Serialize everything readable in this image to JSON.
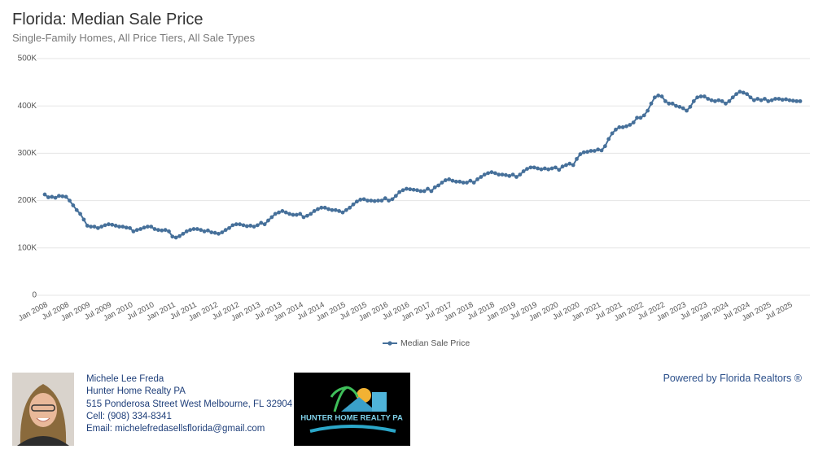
{
  "chart_data": {
    "type": "line",
    "title": "Florida: Median Sale Price",
    "subtitle": "Single-Family Homes, All Price Tiers, All Sale Types",
    "categories": [
      "Jan 2008",
      null,
      null,
      null,
      null,
      null,
      "Jul 2008",
      null,
      null,
      null,
      null,
      null,
      "Jan 2009",
      null,
      null,
      null,
      null,
      null,
      "Jul 2009",
      null,
      null,
      null,
      null,
      null,
      "Jan 2010",
      null,
      null,
      null,
      null,
      null,
      "Jul 2010",
      null,
      null,
      null,
      null,
      null,
      "Jan 2011",
      null,
      null,
      null,
      null,
      null,
      "Jul 2011",
      null,
      null,
      null,
      null,
      null,
      "Jan 2012",
      null,
      null,
      null,
      null,
      null,
      "Jul 2012",
      null,
      null,
      null,
      null,
      null,
      "Jan 2013",
      null,
      null,
      null,
      null,
      null,
      "Jul 2013",
      null,
      null,
      null,
      null,
      null,
      "Jan 2014",
      null,
      null,
      null,
      null,
      null,
      "Jul 2014",
      null,
      null,
      null,
      null,
      null,
      "Jan 2015",
      null,
      null,
      null,
      null,
      null,
      "Jul 2015",
      null,
      null,
      null,
      null,
      null,
      "Jan 2016",
      null,
      null,
      null,
      null,
      null,
      "Jul 2016",
      null,
      null,
      null,
      null,
      null,
      "Jan 2017",
      null,
      null,
      null,
      null,
      null,
      "Jul 2017",
      null,
      null,
      null,
      null,
      null,
      "Jan 2018",
      null,
      null,
      null,
      null,
      null,
      "Jul 2018",
      null,
      null,
      null,
      null,
      null,
      "Jan 2019",
      null,
      null,
      null,
      null,
      null,
      "Jul 2019",
      null,
      null,
      null,
      null,
      null,
      "Jan 2020",
      null,
      null,
      null,
      null,
      null,
      "Jul 2020",
      null,
      null,
      null,
      null,
      null,
      "Jan 2021",
      null,
      null,
      null,
      null,
      null,
      "Jul 2021",
      null,
      null,
      null,
      null,
      null,
      "Jan 2022",
      null,
      null,
      null,
      null,
      null,
      "Jul 2022",
      null,
      null,
      null,
      null,
      null,
      "Jan 2023",
      null,
      null,
      null,
      null,
      null,
      "Jul 2023",
      null,
      null,
      null,
      null,
      null,
      "Jan 2024",
      null,
      null,
      null,
      null,
      null,
      "Jul 2024",
      null,
      null,
      null,
      null,
      null,
      "Jan 2025",
      null,
      null,
      null,
      null,
      null,
      "Jul 2025",
      null,
      null,
      null
    ],
    "series": [
      {
        "name": "Median Sale Price",
        "color": "#46709a",
        "values": [
          213000,
          207000,
          208000,
          206000,
          210000,
          209000,
          208000,
          200000,
          190000,
          180000,
          172000,
          160000,
          147000,
          145000,
          145000,
          142000,
          145000,
          148000,
          150000,
          149000,
          147000,
          145000,
          145000,
          143000,
          142000,
          135000,
          138000,
          140000,
          143000,
          145000,
          145000,
          140000,
          138000,
          137000,
          138000,
          135000,
          124000,
          122000,
          125000,
          130000,
          135000,
          138000,
          140000,
          140000,
          138000,
          135000,
          137000,
          133000,
          132000,
          130000,
          133000,
          138000,
          142000,
          148000,
          150000,
          150000,
          148000,
          146000,
          147000,
          145000,
          148000,
          153000,
          150000,
          158000,
          165000,
          172000,
          175000,
          178000,
          175000,
          172000,
          170000,
          170000,
          172000,
          165000,
          168000,
          172000,
          178000,
          182000,
          185000,
          185000,
          182000,
          180000,
          180000,
          178000,
          175000,
          180000,
          185000,
          192000,
          198000,
          202000,
          203000,
          200000,
          200000,
          199000,
          200000,
          200000,
          205000,
          200000,
          203000,
          210000,
          218000,
          222000,
          225000,
          224000,
          223000,
          222000,
          220000,
          220000,
          225000,
          220000,
          228000,
          232000,
          238000,
          243000,
          245000,
          242000,
          240000,
          240000,
          238000,
          238000,
          242000,
          238000,
          245000,
          250000,
          255000,
          258000,
          260000,
          258000,
          255000,
          255000,
          254000,
          252000,
          255000,
          250000,
          255000,
          262000,
          267000,
          270000,
          270000,
          268000,
          266000,
          268000,
          266000,
          268000,
          270000,
          265000,
          272000,
          275000,
          278000,
          275000,
          288000,
          298000,
          302000,
          303000,
          305000,
          305000,
          308000,
          306000,
          315000,
          330000,
          342000,
          350000,
          355000,
          355000,
          357000,
          360000,
          365000,
          375000,
          375000,
          380000,
          390000,
          405000,
          418000,
          422000,
          420000,
          410000,
          405000,
          405000,
          400000,
          398000,
          395000,
          390000,
          398000,
          410000,
          418000,
          420000,
          420000,
          415000,
          412000,
          410000,
          412000,
          410000,
          405000,
          410000,
          418000,
          425000,
          430000,
          428000,
          425000,
          418000,
          412000,
          415000,
          412000,
          415000,
          410000,
          412000,
          415000,
          415000,
          413000,
          414000,
          412000,
          411000,
          410000,
          410000
        ]
      }
    ],
    "ylim": [
      0,
      500000
    ],
    "yticks": [
      0,
      {
        "value": 100000,
        "label": "100K"
      },
      {
        "value": 200000,
        "label": "200K"
      },
      {
        "value": 300000,
        "label": "300K"
      },
      {
        "value": 400000,
        "label": "400K"
      },
      {
        "value": 500000,
        "label": "500K"
      }
    ],
    "grid": true
  },
  "footer": {
    "agent": {
      "name": "Michele Lee Freda",
      "company": "Hunter Home Realty PA",
      "address": "515 Ponderosa Street West Melbourne, FL 32904",
      "phone": "Cell: (908) 334-8341",
      "email": "Email: michelefredasellsflorida@gmail.com"
    },
    "logo_text": "HUNTER HOME REALTY PA",
    "powered_by": "Powered by Florida Realtors ®"
  }
}
